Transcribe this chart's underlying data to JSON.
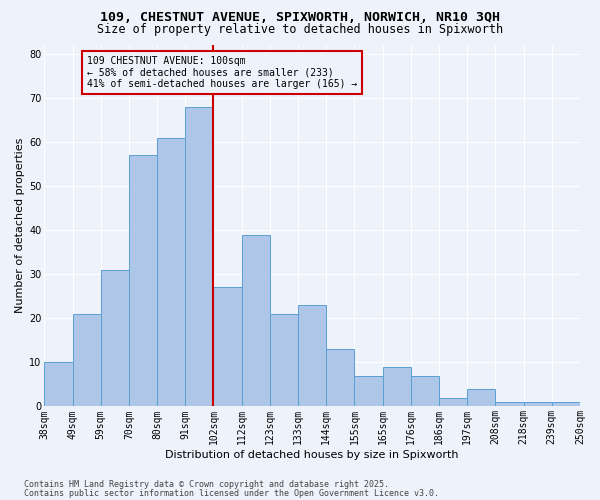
{
  "title_line1": "109, CHESTNUT AVENUE, SPIXWORTH, NORWICH, NR10 3QH",
  "title_line2": "Size of property relative to detached houses in Spixworth",
  "xlabel": "Distribution of detached houses by size in Spixworth",
  "ylabel": "Number of detached properties",
  "bar_heights": [
    10,
    21,
    31,
    57,
    61,
    68,
    27,
    39,
    21,
    23,
    13,
    7,
    9,
    7,
    2,
    4,
    1,
    1,
    1
  ],
  "all_labels": [
    "38sqm",
    "49sqm",
    "59sqm",
    "70sqm",
    "80sqm",
    "91sqm",
    "102sqm",
    "112sqm",
    "123sqm",
    "133sqm",
    "144sqm",
    "155sqm",
    "165sqm",
    "176sqm",
    "186sqm",
    "197sqm",
    "208sqm",
    "218sqm",
    "239sqm",
    "250sqm"
  ],
  "ylim": [
    0,
    82
  ],
  "yticks": [
    0,
    10,
    20,
    30,
    40,
    50,
    60,
    70,
    80
  ],
  "bar_color": "#aec6e8",
  "bar_edge_color": "#5a9fd4",
  "vline_x": 6.0,
  "vline_color": "#cc0000",
  "annotation_text": "109 CHESTNUT AVENUE: 100sqm\n← 58% of detached houses are smaller (233)\n41% of semi-detached houses are larger (165) →",
  "annotation_box_color": "#cc0000",
  "footer_line1": "Contains HM Land Registry data © Crown copyright and database right 2025.",
  "footer_line2": "Contains public sector information licensed under the Open Government Licence v3.0.",
  "bg_color": "#eef2fb",
  "grid_color": "#ffffff",
  "title_fontsize": 9.5,
  "subtitle_fontsize": 8.5,
  "axis_label_fontsize": 8,
  "tick_fontsize": 7,
  "annotation_fontsize": 7,
  "footer_fontsize": 6
}
